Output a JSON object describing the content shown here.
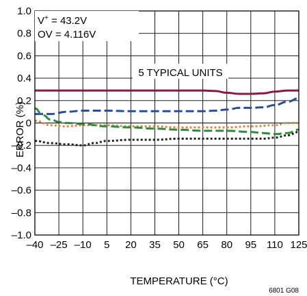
{
  "chart_data": {
    "type": "line",
    "xlabel": "TEMPERATURE (°C)",
    "ylabel": "ERROR (%)",
    "xlim": [
      -40,
      125
    ],
    "ylim": [
      -1.0,
      1.0
    ],
    "x_ticks": [
      -40,
      -25,
      -10,
      5,
      20,
      35,
      50,
      65,
      80,
      95,
      110,
      125
    ],
    "x_tick_labels": [
      "–40",
      "–25",
      "–10",
      "5",
      "20",
      "35",
      "50",
      "65",
      "80",
      "95",
      "110",
      "125"
    ],
    "y_ticks": [
      1.0,
      0.8,
      0.6,
      0.4,
      0.2,
      0,
      -0.2,
      -0.4,
      -0.6,
      -0.8,
      -1.0
    ],
    "y_tick_labels": [
      "1.0",
      "0.8",
      "0.6",
      "0.4",
      "0.2",
      "0",
      "–0.2",
      "–0.4",
      "–0.6",
      "–0.8",
      "–1.0"
    ],
    "grid": true,
    "annotations": {
      "vplus_prefix": "V",
      "vplus_sup": "+",
      "vplus_suffix": " = 43.2V",
      "ov": "OV = 4.116V",
      "units": "5 TYPICAL UNITS"
    },
    "figure_code": "6801 G08",
    "series": [
      {
        "color": "#8b1a3a",
        "style": "solid",
        "x": [
          -40,
          -25,
          -10,
          5,
          20,
          35,
          50,
          65,
          73,
          80,
          88,
          95,
          103,
          110,
          118,
          125
        ],
        "values": [
          0.29,
          0.29,
          0.29,
          0.29,
          0.29,
          0.29,
          0.29,
          0.29,
          0.285,
          0.27,
          0.26,
          0.26,
          0.265,
          0.28,
          0.29,
          0.29
        ]
      },
      {
        "color": "#2b4c9b",
        "style": "dashed",
        "x": [
          -40,
          -30,
          -20,
          -10,
          5,
          20,
          35,
          50,
          65,
          73,
          80,
          88,
          95,
          103,
          110,
          118,
          125
        ],
        "values": [
          0.08,
          0.08,
          0.1,
          0.11,
          0.11,
          0.105,
          0.105,
          0.105,
          0.105,
          0.11,
          0.12,
          0.135,
          0.135,
          0.14,
          0.16,
          0.19,
          0.22
        ]
      },
      {
        "color": "#d98a3a",
        "style": "dotted",
        "x": [
          -40,
          -30,
          -20,
          -10,
          5,
          20,
          35,
          50,
          65,
          80,
          95,
          110,
          118,
          125
        ],
        "values": [
          0.02,
          -0.02,
          -0.03,
          -0.02,
          -0.02,
          -0.03,
          -0.03,
          -0.04,
          -0.04,
          -0.04,
          -0.03,
          -0.02,
          0.0,
          0.0
        ]
      },
      {
        "color": "#2e8b3e",
        "style": "dashed",
        "x": [
          -40,
          -35,
          -30,
          -25,
          -20,
          -10,
          5,
          20,
          35,
          50,
          65,
          80,
          95,
          103,
          110,
          118,
          125
        ],
        "values": [
          0.13,
          0.07,
          0.03,
          0.01,
          0.0,
          -0.01,
          -0.03,
          -0.04,
          -0.05,
          -0.06,
          -0.07,
          -0.07,
          -0.08,
          -0.09,
          -0.1,
          -0.09,
          -0.06
        ]
      },
      {
        "color": "#222222",
        "style": "dotted",
        "x": [
          -40,
          -30,
          -20,
          -10,
          -3,
          5,
          20,
          35,
          50,
          65,
          80,
          95,
          103,
          110,
          118,
          125
        ],
        "values": [
          -0.16,
          -0.18,
          -0.19,
          -0.2,
          -0.18,
          -0.16,
          -0.15,
          -0.15,
          -0.14,
          -0.14,
          -0.14,
          -0.14,
          -0.14,
          -0.13,
          -0.11,
          -0.08
        ]
      }
    ]
  }
}
